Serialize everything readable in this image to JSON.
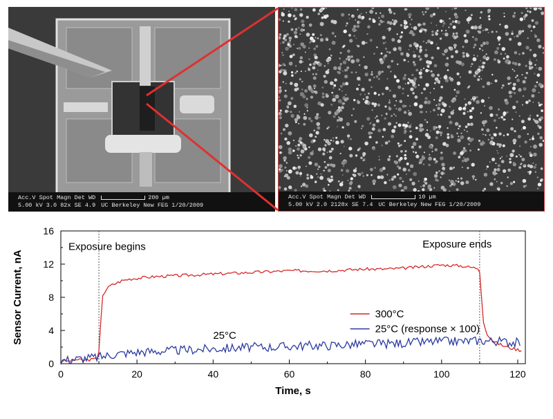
{
  "sem_left": {
    "databar_labels": "Acc.V  Spot  Magn   Det  WD",
    "databar_values": "5.00 kV  3.0   82x    SE   4.9",
    "scale_label": "200 µm",
    "footer": "UC Berkeley   New FEG   1/20/2009"
  },
  "sem_right": {
    "databar_labels": "Acc.V  Spot  Magn   Det  WD",
    "databar_values": "5.00 kV  2.0   2128x  SE   7.4",
    "scale_label": "10 µm",
    "footer": "UC Berkeley   New FEG   1/20/2009"
  },
  "colors": {
    "series_300": "#d62728",
    "series_25": "#2b3a9e",
    "zoom_line": "#e03030"
  },
  "chart_data": {
    "type": "line",
    "xlabel": "Time, s",
    "ylabel": "Sensor Current, nA",
    "xlim": [
      0,
      122
    ],
    "ylim": [
      0,
      16
    ],
    "xticks": [
      "0",
      "20",
      "40",
      "60",
      "80",
      "100",
      "120"
    ],
    "yticks": [
      "0",
      "4",
      "8",
      "12",
      "16"
    ],
    "annotations": [
      "Exposure begins",
      "Exposure ends",
      "25°C"
    ],
    "event_lines_x": [
      10,
      110
    ],
    "legend": "right, middle",
    "series": [
      {
        "name": "300°C",
        "color": "#d62728",
        "x": [
          0,
          2,
          4,
          6,
          8,
          9.8,
          10.2,
          10.6,
          11,
          12,
          13,
          14,
          15,
          16,
          18,
          20,
          22,
          25,
          30,
          35,
          40,
          45,
          50,
          55,
          60,
          65,
          70,
          75,
          80,
          85,
          90,
          95,
          100,
          105,
          108,
          109.8,
          110.2,
          110.6,
          111,
          112,
          113,
          114,
          116,
          118,
          121
        ],
        "y": [
          0.4,
          0.3,
          0.5,
          0.4,
          0.5,
          0.6,
          2.5,
          6,
          8.2,
          9.0,
          9.4,
          9.6,
          9.8,
          10.0,
          10.2,
          10.3,
          10.4,
          10.5,
          10.6,
          10.7,
          10.8,
          10.9,
          11.0,
          11.1,
          11.2,
          11.2,
          11.2,
          11.3,
          11.4,
          11.4,
          11.5,
          11.7,
          11.9,
          11.8,
          11.6,
          11.5,
          10.5,
          7,
          5,
          3.6,
          3.0,
          2.6,
          2.2,
          1.9,
          1.6
        ]
      },
      {
        "name": "25°C (response × 100)",
        "color": "#2b3a9e",
        "x": [
          0,
          5,
          10,
          15,
          20,
          25,
          30,
          35,
          40,
          45,
          50,
          55,
          60,
          65,
          70,
          75,
          80,
          85,
          90,
          95,
          100,
          105,
          110,
          115,
          121
        ],
        "y": [
          0.4,
          0.6,
          0.8,
          1.2,
          1.4,
          1.5,
          1.6,
          1.7,
          1.8,
          1.9,
          2.0,
          2.0,
          2.1,
          2.2,
          2.2,
          2.3,
          2.4,
          2.4,
          2.5,
          2.6,
          2.7,
          2.7,
          2.8,
          2.7,
          2.5
        ]
      }
    ]
  }
}
